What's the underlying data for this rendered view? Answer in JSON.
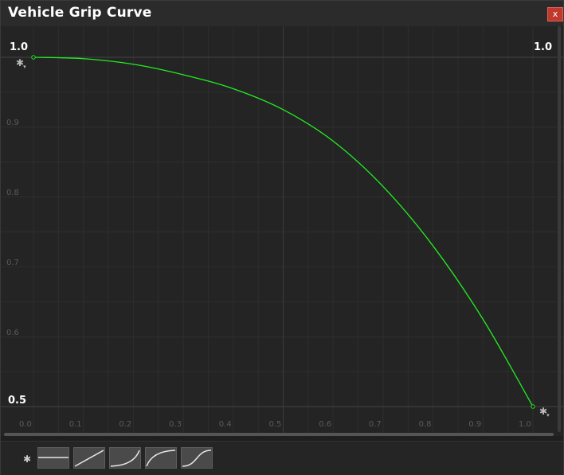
{
  "window": {
    "title": "Vehicle Grip Curve",
    "close_label": "x"
  },
  "graph": {
    "y_min_label": "0.5",
    "y_max_label": "1.0",
    "y_max_label_right": "1.0",
    "y_ticks": [
      "0.9",
      "0.8",
      "0.7",
      "0.6"
    ],
    "x_ticks": [
      "0.0",
      "0.1",
      "0.2",
      "0.3",
      "0.4",
      "0.5",
      "0.6",
      "0.7",
      "0.8",
      "0.9",
      "1.0"
    ],
    "curve_color": "#22ee22",
    "grid_color": "#2e2e2e"
  },
  "icons": {
    "left_key_menu": "gear-icon",
    "right_key_menu": "gear-icon",
    "preset_settings": "gear-icon"
  },
  "presets": [
    "constant",
    "linear",
    "ease-in",
    "ease-out",
    "ease-in-out"
  ],
  "chart_data": {
    "type": "line",
    "title": "Vehicle Grip Curve",
    "xlabel": "",
    "ylabel": "",
    "xlim": [
      0.0,
      1.0
    ],
    "ylim": [
      0.5,
      1.0
    ],
    "grid": true,
    "series": [
      {
        "x": [
          0.0,
          0.1,
          0.2,
          0.3,
          0.4,
          0.5,
          0.6,
          0.7,
          0.8,
          0.9,
          1.0
        ],
        "values": [
          1.0,
          0.998,
          0.99,
          0.975,
          0.955,
          0.925,
          0.88,
          0.815,
          0.73,
          0.625,
          0.5
        ]
      }
    ]
  }
}
